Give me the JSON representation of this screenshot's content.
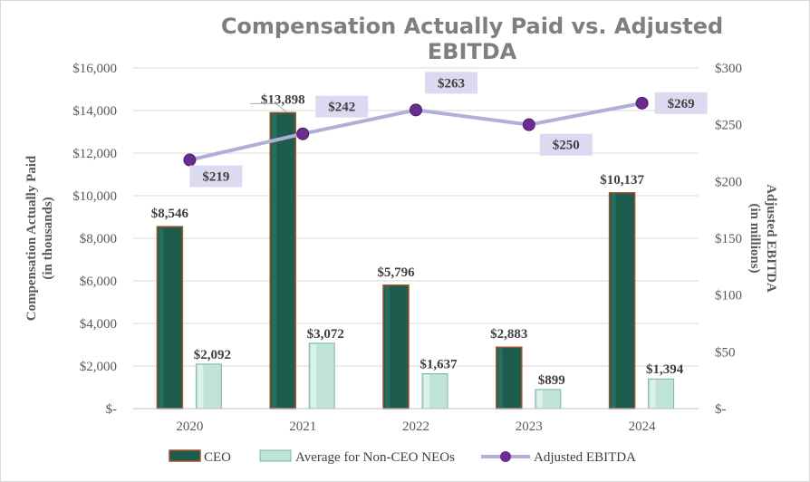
{
  "chart_data": {
    "type": "bar",
    "title": "Compensation Actually Paid vs. Adjusted EBITDA",
    "categories": [
      "2020",
      "2021",
      "2022",
      "2023",
      "2024"
    ],
    "series": [
      {
        "name": "CEO",
        "axis": "left",
        "values": [
          8546,
          13898,
          5796,
          2883,
          10137
        ],
        "labels": [
          "$8,546",
          "$13,898",
          "$5,796",
          "$2,883",
          "$10,137"
        ],
        "color": "#1e5c4e",
        "edge_color": "#a0522d"
      },
      {
        "name": "Average for Non-CEO NEOs",
        "axis": "left",
        "values": [
          2092,
          3072,
          1637,
          899,
          1394
        ],
        "labels": [
          "$2,092",
          "$3,072",
          "$1,637",
          "$899",
          "$1,394"
        ],
        "color": "#bfe3d6",
        "edge_color": "#7fb5a5"
      },
      {
        "name": "Adjusted EBITDA",
        "type": "line",
        "axis": "right",
        "values": [
          219,
          242,
          263,
          250,
          269
        ],
        "labels": [
          "$219",
          "$242",
          "$263",
          "$250",
          "$269"
        ],
        "line_color": "#b3aed8",
        "marker_color": "#6a2c8e",
        "label_bg": "#dcdaf0"
      }
    ],
    "y_left": {
      "title_line1": "Compensation Actually Paid",
      "title_line2": "(in thousands)",
      "min": 0,
      "max": 16000,
      "step": 2000,
      "tick_labels": [
        "$-",
        "$2,000",
        "$4,000",
        "$6,000",
        "$8,000",
        "$10,000",
        "$12,000",
        "$14,000",
        "$16,000"
      ]
    },
    "y_right": {
      "title_line1": "Adjusted EBITDA",
      "title_line2": "(in millions)",
      "min": 0,
      "max": 300,
      "step": 50,
      "tick_labels": [
        "$-",
        "$50",
        "$100",
        "$150",
        "$200",
        "$250",
        "$300"
      ]
    },
    "grid": true,
    "legend": {
      "position": "bottom",
      "items": [
        "CEO",
        "Average for Non-CEO NEOs",
        "Adjusted EBITDA"
      ]
    }
  }
}
